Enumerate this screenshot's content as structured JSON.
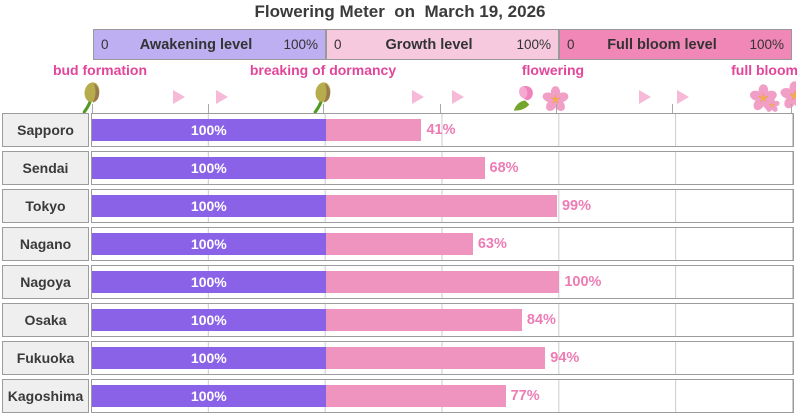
{
  "title": "Flowering Meter  on  March 19, 2026",
  "header": {
    "bands": [
      {
        "label": "Awakening level",
        "min": "0",
        "max": "100%",
        "color": "#beaff2"
      },
      {
        "label": "Growth level",
        "min": "0",
        "max": "100%",
        "color": "#f7c9df"
      },
      {
        "label": "Full bloom level",
        "min": "0",
        "max": "100%",
        "color": "#f187b6"
      }
    ]
  },
  "stages": [
    {
      "label": "bud formation",
      "icon": "bud-icon"
    },
    {
      "label": "breaking of dormancy",
      "icon": "bud-icon"
    },
    {
      "label": "flowering",
      "icon": "tulip-and-cherry-blossom-icon"
    },
    {
      "label": "full bloom",
      "icon": "cherry-blossom-cluster-icon"
    }
  ],
  "colors": {
    "awakening_bar": "#8a62e8",
    "growth_bar": "#ef94bf",
    "percent_text": "#ee7cb4",
    "stage_text": "#e2459a",
    "arrow": "#f6b9d8",
    "city_cell_bg": "#efefef",
    "grid_line": "#cbcbcb"
  },
  "chart_data": {
    "type": "bar",
    "orientation": "horizontal",
    "title": "Flowering Meter  on  March 19, 2026",
    "date": "March 19, 2026",
    "categories": [
      "Sapporo",
      "Sendai",
      "Tokyo",
      "Nagano",
      "Nagoya",
      "Osaka",
      "Fukuoka",
      "Kagoshima"
    ],
    "series": [
      {
        "name": "Awakening level",
        "unit": "%",
        "range": [
          0,
          100
        ],
        "values": [
          100,
          100,
          100,
          100,
          100,
          100,
          100,
          100
        ]
      },
      {
        "name": "Growth level",
        "unit": "%",
        "range": [
          0,
          100
        ],
        "values": [
          41,
          68,
          99,
          63,
          100,
          84,
          94,
          77
        ]
      },
      {
        "name": "Full bloom level",
        "unit": "%",
        "range": [
          0,
          100
        ],
        "values": [
          0,
          0,
          0,
          0,
          0,
          0,
          0,
          0
        ]
      }
    ],
    "stage_markers": [
      "bud formation",
      "breaking of dormancy",
      "flowering",
      "full bloom"
    ],
    "grid": true,
    "legend_position": "top-bands"
  },
  "rows": [
    {
      "city": "Sapporo",
      "awakening_label": "100%",
      "growth_pct": 41,
      "growth_label": "41%"
    },
    {
      "city": "Sendai",
      "awakening_label": "100%",
      "growth_pct": 68,
      "growth_label": "68%"
    },
    {
      "city": "Tokyo",
      "awakening_label": "100%",
      "growth_pct": 99,
      "growth_label": "99%"
    },
    {
      "city": "Nagano",
      "awakening_label": "100%",
      "growth_pct": 63,
      "growth_label": "63%"
    },
    {
      "city": "Nagoya",
      "awakening_label": "100%",
      "growth_pct": 100,
      "growth_label": "100%"
    },
    {
      "city": "Osaka",
      "awakening_label": "100%",
      "growth_pct": 84,
      "growth_label": "84%"
    },
    {
      "city": "Fukuoka",
      "awakening_label": "100%",
      "growth_pct": 94,
      "growth_label": "94%"
    },
    {
      "city": "Kagoshima",
      "awakening_label": "100%",
      "growth_pct": 77,
      "growth_label": "77%"
    }
  ]
}
